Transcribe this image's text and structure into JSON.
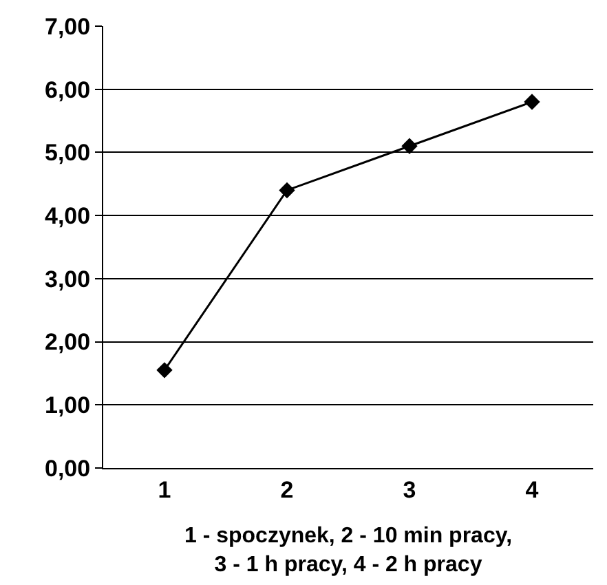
{
  "chart_data": {
    "type": "line",
    "categories": [
      "1",
      "2",
      "3",
      "4"
    ],
    "series": [
      {
        "color": "#000000",
        "values": [
          1.55,
          4.4,
          5.1,
          5.8
        ]
      }
    ],
    "xlabel": "1 - spoczynek, 2 - 10 min pracy,\n3 - 1 h pracy, 4 - 2 h pracy",
    "ylim": [
      0,
      7
    ],
    "yticks": [
      {
        "value": 0,
        "label": "0,00"
      },
      {
        "value": 1,
        "label": "1,00"
      },
      {
        "value": 2,
        "label": "2,00"
      },
      {
        "value": 3,
        "label": "3,00"
      },
      {
        "value": 4,
        "label": "4,00"
      },
      {
        "value": 5,
        "label": "5,00"
      },
      {
        "value": 6,
        "label": "6,00"
      },
      {
        "value": 7,
        "label": "7,00"
      }
    ],
    "grid": "y",
    "marker": "diamond",
    "line_style": "solid",
    "legend": false
  }
}
